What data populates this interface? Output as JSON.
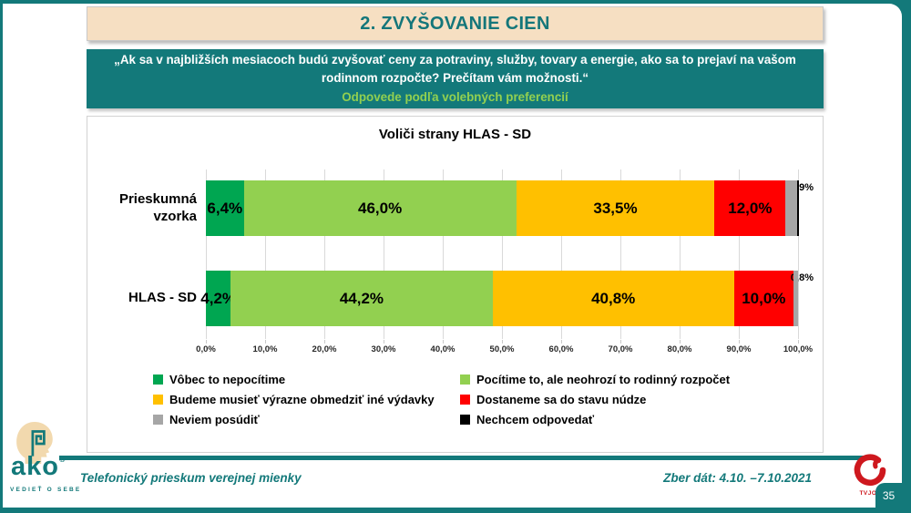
{
  "slide": {
    "page_number": "35",
    "colors": {
      "accent_teal": "#13797A",
      "header_beige": "#F6DFC2",
      "subtitle_green": "#92D050",
      "joj_red": "#CE181E"
    },
    "header": {
      "title": "2. ZVYŠOVANIE CIEN"
    },
    "question": {
      "text": "„Ak sa v najbližších mesiacoch budú zvyšovať ceny za potraviny, služby, tovary a energie, ako sa to prejaví na vašom rodinnom rozpočte? Prečítam vám možnosti.“",
      "subtitle": "Odpovede podľa volebných preferencií"
    },
    "footer": {
      "logo_text": "ako",
      "logo_reg": "®",
      "logo_tagline": "VEDIEŤ O SEBE",
      "left_text": "Telefonický prieskum verejnej mienky",
      "right_text": "Zber dát: 4.10. –7.10.2021",
      "tv_logo_label": "TVJOJ"
    }
  },
  "chart_data": {
    "type": "bar",
    "variant": "horizontal-stacked",
    "title": "Voliči strany HLAS - SD",
    "categories": [
      "Prieskumná vzorka",
      "HLAS - SD"
    ],
    "series": [
      {
        "name": "Vôbec to nepocítime",
        "color": "#00A651",
        "values": [
          6.4,
          4.2
        ],
        "labels": [
          "6,4%",
          "4,2%"
        ]
      },
      {
        "name": "Pocítime to, ale neohrozí to rodinný rozpočet",
        "color": "#92D050",
        "values": [
          46.0,
          44.2
        ],
        "labels": [
          "46,0%",
          "44,2%"
        ]
      },
      {
        "name": "Budeme musieť výrazne obmedziť iné výdavky",
        "color": "#FFC000",
        "values": [
          33.5,
          40.8
        ],
        "labels": [
          "33,5%",
          "40,8%"
        ]
      },
      {
        "name": "Dostaneme sa do stavu núdze",
        "color": "#FF0000",
        "values": [
          12.0,
          10.0
        ],
        "labels": [
          "12,0%",
          "10,0%"
        ]
      },
      {
        "name": "Neviem posúdiť",
        "color": "#A6A6A6",
        "values": [
          1.9,
          0.8
        ],
        "labels": [
          "1,9%",
          "0,8%"
        ]
      },
      {
        "name": "Nechcem odpovedať",
        "color": "#000000",
        "values": [
          0.2,
          0.0
        ],
        "labels": [
          "",
          ""
        ]
      }
    ],
    "x_ticks": [
      "0,0%",
      "10,0%",
      "20,0%",
      "30,0%",
      "40,0%",
      "50,0%",
      "60,0%",
      "70,0%",
      "80,0%",
      "90,0%",
      "100,0%"
    ],
    "xlim": [
      0,
      100
    ],
    "grid": true,
    "legend_position": "bottom"
  }
}
